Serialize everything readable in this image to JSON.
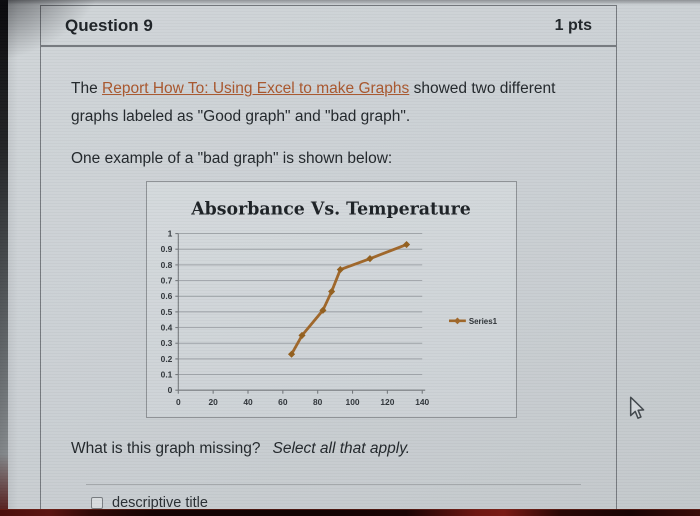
{
  "header": {
    "title": "Question 9",
    "points": "1 pts"
  },
  "body": {
    "paragraph1": {
      "pre": "The ",
      "link": "Report How To: Using Excel to make Graphs",
      "post": " showed two different graphs labeled as \"Good graph\" and \"bad graph\"."
    },
    "paragraph2": "One example of a \"bad graph\" is shown below:",
    "prompt": {
      "question": "What is this graph missing?",
      "instruction": "Select all that apply."
    },
    "options": [
      {
        "label": "descriptive title",
        "checked": false
      }
    ]
  },
  "colors": {
    "link": "#a9572e",
    "series_line": "#a0672a",
    "series_marker": "#93601f",
    "bottom_bar_red": "#5c1512"
  },
  "chart_data": {
    "type": "line",
    "title": "Absorbance Vs. Temperature",
    "xlabel": "",
    "ylabel": "",
    "xlim": [
      0,
      140
    ],
    "ylim": [
      0,
      1
    ],
    "x_ticks": [
      0,
      20,
      40,
      60,
      80,
      100,
      120,
      140
    ],
    "y_ticks": [
      0,
      0.1,
      0.2,
      0.3,
      0.4,
      0.5,
      0.6,
      0.7,
      0.8,
      0.9,
      1
    ],
    "grid": true,
    "legend": {
      "position": "right",
      "entries": [
        "Series1"
      ]
    },
    "series": [
      {
        "name": "Series1",
        "color": "#a0672a",
        "marker": "diamond",
        "marker_color": "#93601f",
        "x": [
          65,
          71,
          83,
          88,
          93,
          110,
          131
        ],
        "y": [
          0.23,
          0.35,
          0.51,
          0.63,
          0.77,
          0.84,
          0.93
        ]
      }
    ]
  }
}
